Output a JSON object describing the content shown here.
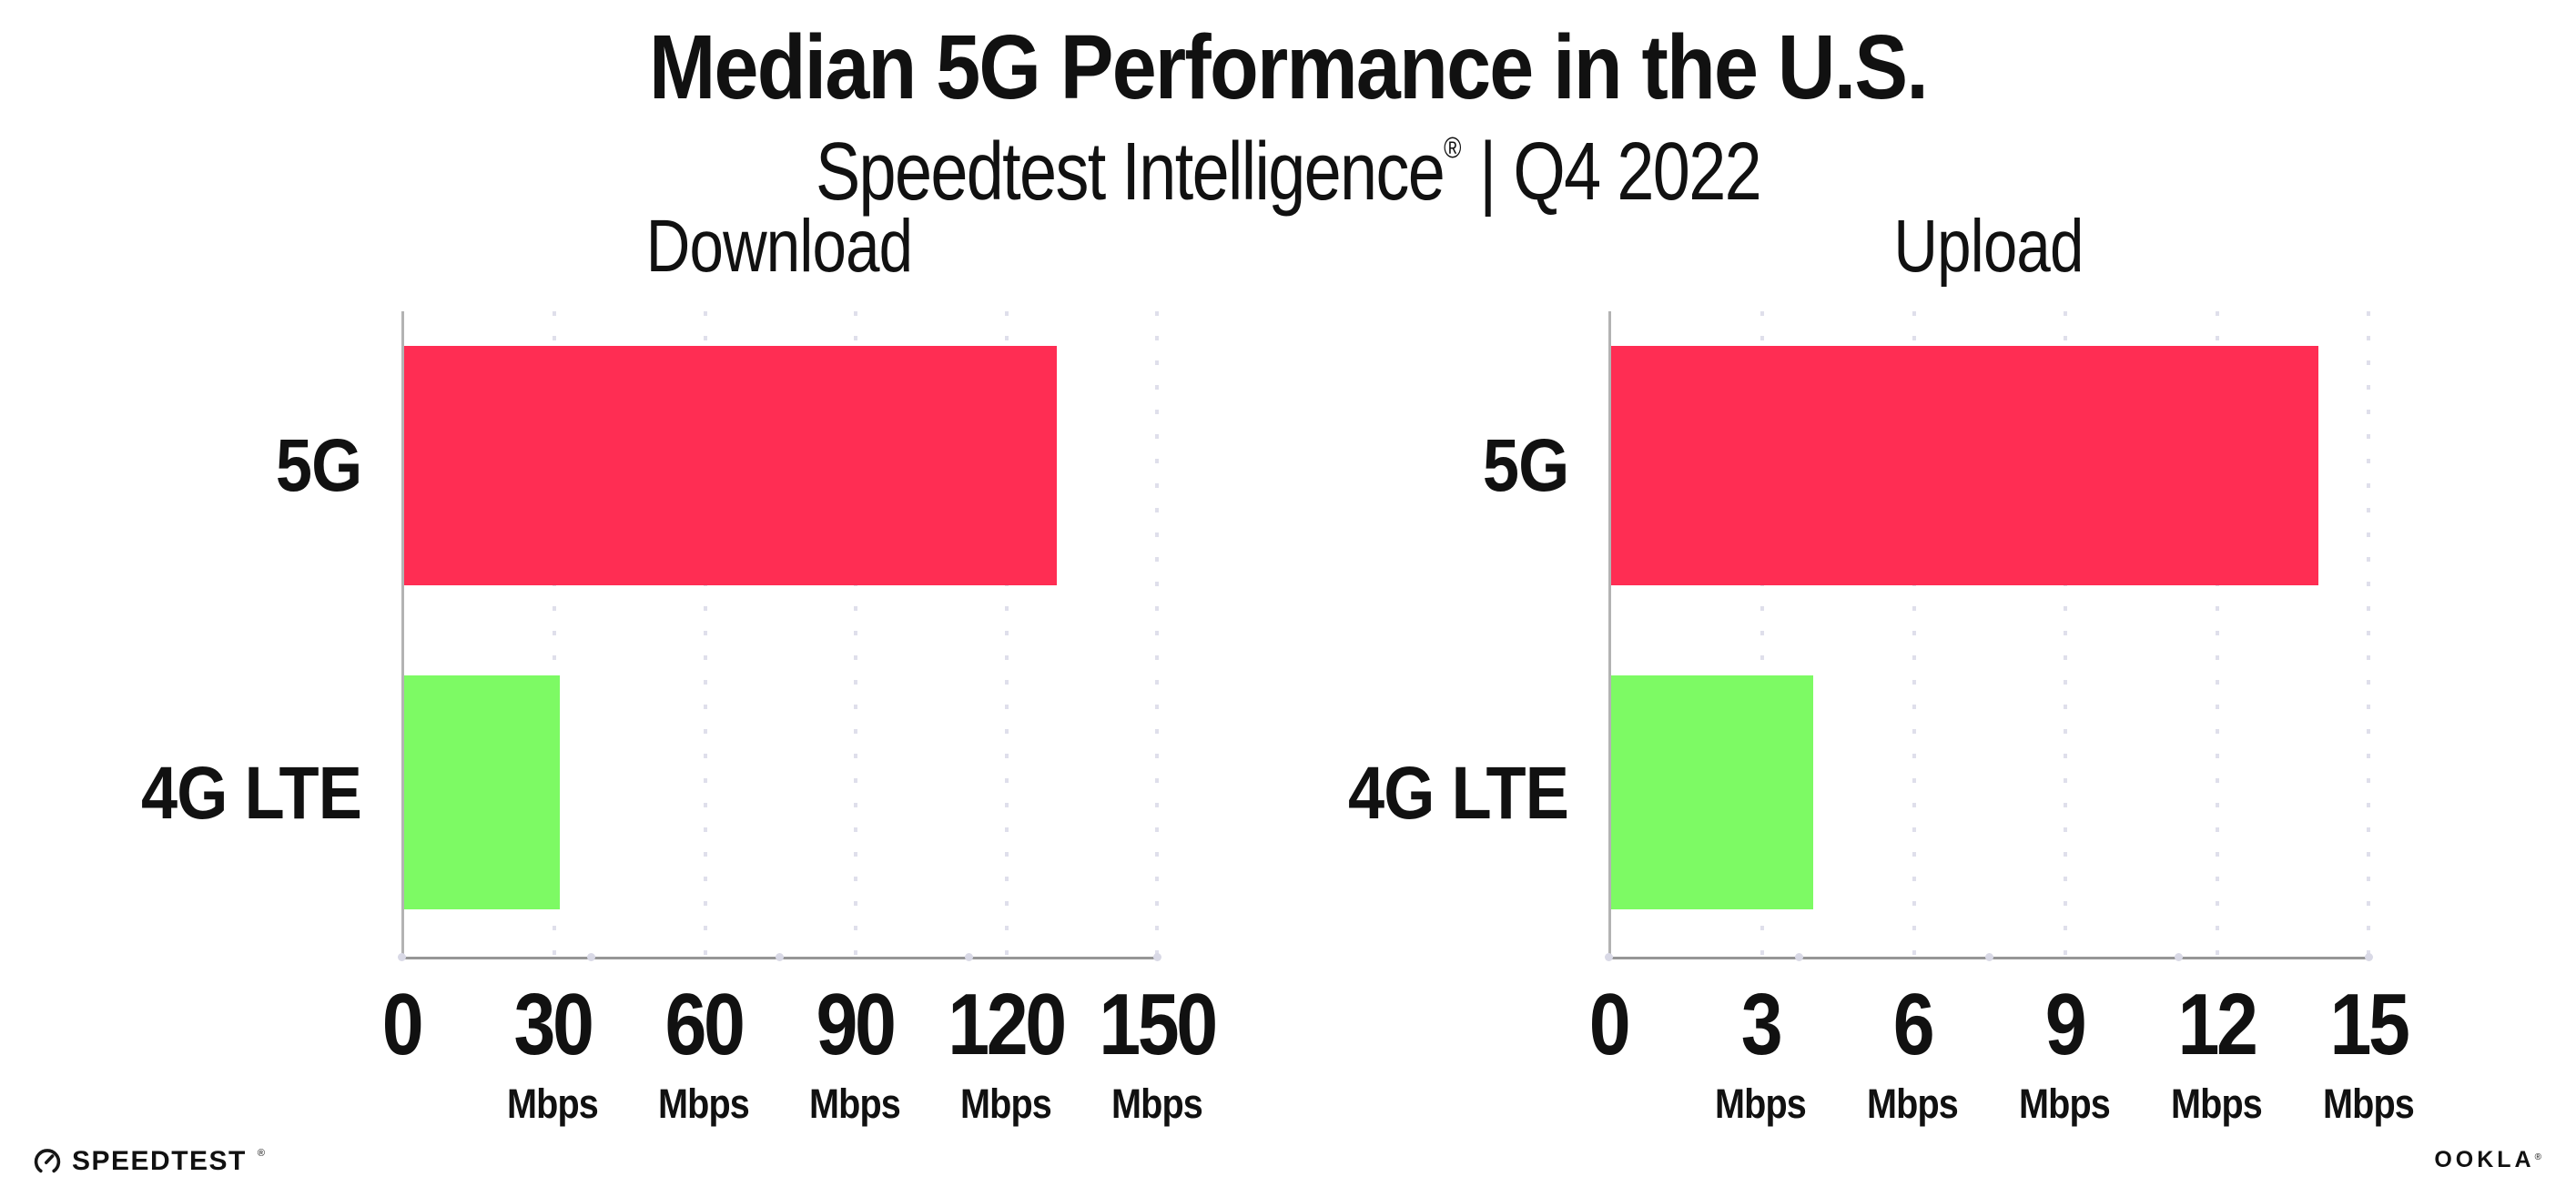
{
  "header": {
    "title": "Median 5G Performance in the U.S.",
    "subtitle": {
      "brand": "Speedtest Intelligence",
      "reg": "®",
      "separator": "|",
      "period": "Q4 2022"
    }
  },
  "chart_data": [
    {
      "type": "bar",
      "orientation": "horizontal",
      "title": "Download",
      "categories": [
        "5G",
        "4G LTE"
      ],
      "values": [
        130,
        31
      ],
      "unit": "Mbps",
      "xlim": [
        0,
        150
      ],
      "ticks": [
        0,
        30,
        60,
        90,
        120,
        150
      ],
      "grid": "dotted-vertical",
      "legend": "none",
      "bar_colors": [
        "#FF2D53",
        "#7DFA64"
      ]
    },
    {
      "type": "bar",
      "orientation": "horizontal",
      "title": "Upload",
      "categories": [
        "5G",
        "4G LTE"
      ],
      "values": [
        14,
        4
      ],
      "unit": "Mbps",
      "xlim": [
        0,
        15
      ],
      "ticks": [
        0,
        3,
        6,
        9,
        12,
        15
      ],
      "grid": "dotted-vertical",
      "legend": "none",
      "bar_colors": [
        "#FF2D53",
        "#7DFA64"
      ]
    }
  ],
  "footer": {
    "speedtest": {
      "label": "SPEEDTEST",
      "reg": "®"
    },
    "ookla": {
      "label": "OOKLA",
      "reg": "®"
    }
  },
  "colors": {
    "bar_5g": "#FF2D53",
    "bar_4g": "#7DFA64",
    "gridline": "#DFDFEB",
    "axis_bottom": "#969696",
    "axis_left": "#B3B3B3",
    "tick_dot": "#D9D9E6",
    "text": "#111111",
    "background": "#FFFFFF"
  }
}
